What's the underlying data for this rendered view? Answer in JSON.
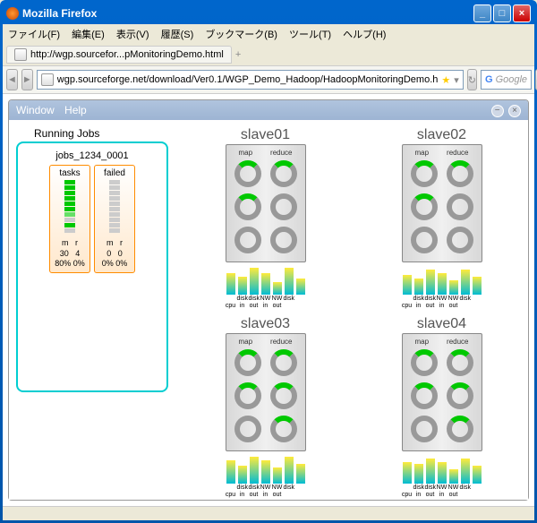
{
  "window": {
    "title": "Mozilla Firefox",
    "menubar": [
      "ファイル(F)",
      "編集(E)",
      "表示(V)",
      "履歴(S)",
      "ブックマーク(B)",
      "ツール(T)",
      "ヘルプ(H)"
    ],
    "tab_label": "http://wgp.sourcefor...pMonitoringDemo.html",
    "url": "wgp.sourceforge.net/download/Ver0.1/WGP_Demo_Hadoop/HadoopMonitoringDemo.h",
    "search_placeholder": "Google"
  },
  "inner": {
    "menu": [
      "Window",
      "Help"
    ]
  },
  "jobs": {
    "title": "Running Jobs",
    "name": "jobs_1234_0001",
    "columns": [
      {
        "header": "tasks",
        "bar_colors": [
          "#00c800",
          "#00c800",
          "#00c800",
          "#00c800",
          "#00c800",
          "#00c800",
          "#66e066",
          "#cccccc",
          "#00c800",
          "#cccccc"
        ],
        "m": "30",
        "r": "4",
        "pct": "80%",
        "pct2": "0%"
      },
      {
        "header": "failed",
        "bar_colors": [
          "#cccccc",
          "#cccccc",
          "#cccccc",
          "#cccccc",
          "#cccccc",
          "#cccccc",
          "#cccccc",
          "#cccccc",
          "#cccccc",
          "#cccccc"
        ],
        "m": "0",
        "r": "0",
        "pct": "0%",
        "pct2": "0%"
      }
    ],
    "stat_hdr_m": "m",
    "stat_hdr_r": "r",
    "border_color": "#00ced1",
    "col_border": "#ff8c00"
  },
  "slaves": [
    {
      "name": "slave01",
      "spinners": [
        [
          "green",
          "green"
        ],
        [
          "green",
          "gray"
        ],
        [
          "gray",
          "gray"
        ]
      ],
      "metrics": [
        24,
        20,
        30,
        24,
        14,
        30,
        18
      ]
    },
    {
      "name": "slave02",
      "spinners": [
        [
          "green",
          "green"
        ],
        [
          "green",
          "gray"
        ],
        [
          "gray",
          "gray"
        ]
      ],
      "metrics": [
        22,
        18,
        28,
        24,
        16,
        28,
        20
      ]
    },
    {
      "name": "slave03",
      "spinners": [
        [
          "green",
          "green"
        ],
        [
          "green",
          "green"
        ],
        [
          "gray",
          "green"
        ]
      ],
      "metrics": [
        26,
        20,
        30,
        26,
        18,
        30,
        22
      ]
    },
    {
      "name": "slave04",
      "spinners": [
        [
          "green",
          "green"
        ],
        [
          "green",
          "green"
        ],
        [
          "gray",
          "green"
        ]
      ],
      "metrics": [
        24,
        22,
        28,
        24,
        16,
        28,
        20
      ]
    }
  ],
  "metric_labels": [
    "cpu",
    "disk\nin",
    "disk\nout",
    "NW\nin",
    "NW\nout",
    "disk",
    ""
  ],
  "metric_labels_row": [
    "",
    "disk",
    "disk",
    "NW",
    "NW",
    "disk",
    ""
  ],
  "metric_labels_row2": [
    "cpu",
    "in",
    "out",
    "in",
    "out",
    "",
    ""
  ]
}
